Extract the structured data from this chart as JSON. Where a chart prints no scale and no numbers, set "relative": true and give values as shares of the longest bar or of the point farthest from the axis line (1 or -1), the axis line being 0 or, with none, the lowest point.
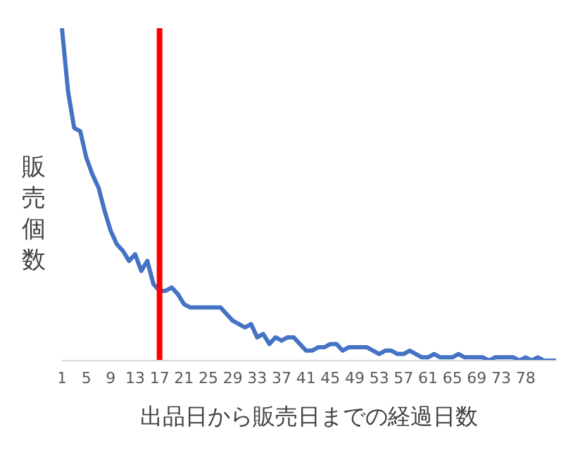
{
  "chart_data": {
    "type": "line",
    "relative": true,
    "xlabel": "出品日から販売日までの経過日数",
    "ylabel": "販売個数",
    "tick_labels": "x",
    "grid": false,
    "legend": false,
    "categories": [
      "1",
      null,
      null,
      null,
      "5",
      null,
      null,
      null,
      "9",
      null,
      null,
      null,
      "13",
      null,
      null,
      null,
      "17",
      null,
      null,
      null,
      "21",
      null,
      null,
      null,
      "25",
      null,
      null,
      null,
      "29",
      null,
      null,
      null,
      "33",
      null,
      null,
      null,
      "37",
      null,
      null,
      null,
      "41",
      null,
      null,
      null,
      "45",
      null,
      null,
      null,
      "49",
      null,
      null,
      null,
      "53",
      null,
      null,
      null,
      "57",
      null,
      null,
      null,
      "61",
      null,
      null,
      null,
      "65",
      null,
      null,
      null,
      "69",
      null,
      null,
      null,
      "73",
      null,
      null,
      null,
      "78",
      null,
      null,
      null,
      null,
      null
    ],
    "series": [
      {
        "color": "#4472c4",
        "values": [
          1.0,
          0.81,
          0.7,
          0.69,
          0.61,
          0.56,
          0.52,
          0.45,
          0.39,
          0.35,
          0.33,
          0.3,
          0.32,
          0.27,
          0.3,
          0.23,
          0.21,
          0.21,
          0.22,
          0.2,
          0.17,
          0.16,
          0.16,
          0.16,
          0.16,
          0.16,
          0.16,
          0.14,
          0.12,
          0.11,
          0.1,
          0.11,
          0.07,
          0.08,
          0.05,
          0.07,
          0.06,
          0.07,
          0.07,
          0.05,
          0.03,
          0.03,
          0.04,
          0.04,
          0.05,
          0.05,
          0.03,
          0.04,
          0.04,
          0.04,
          0.04,
          0.03,
          0.02,
          0.03,
          0.03,
          0.02,
          0.02,
          0.03,
          0.02,
          0.01,
          0.01,
          0.02,
          0.01,
          0.01,
          0.01,
          0.02,
          0.01,
          0.01,
          0.01,
          0.01,
          0,
          0.01,
          0.01,
          0.01,
          0.01,
          0,
          0.01,
          0,
          0.01,
          0,
          0,
          0
        ]
      }
    ],
    "ref_lines": [
      {
        "axis": "x",
        "value": "17",
        "color": "#ff0000"
      }
    ]
  }
}
